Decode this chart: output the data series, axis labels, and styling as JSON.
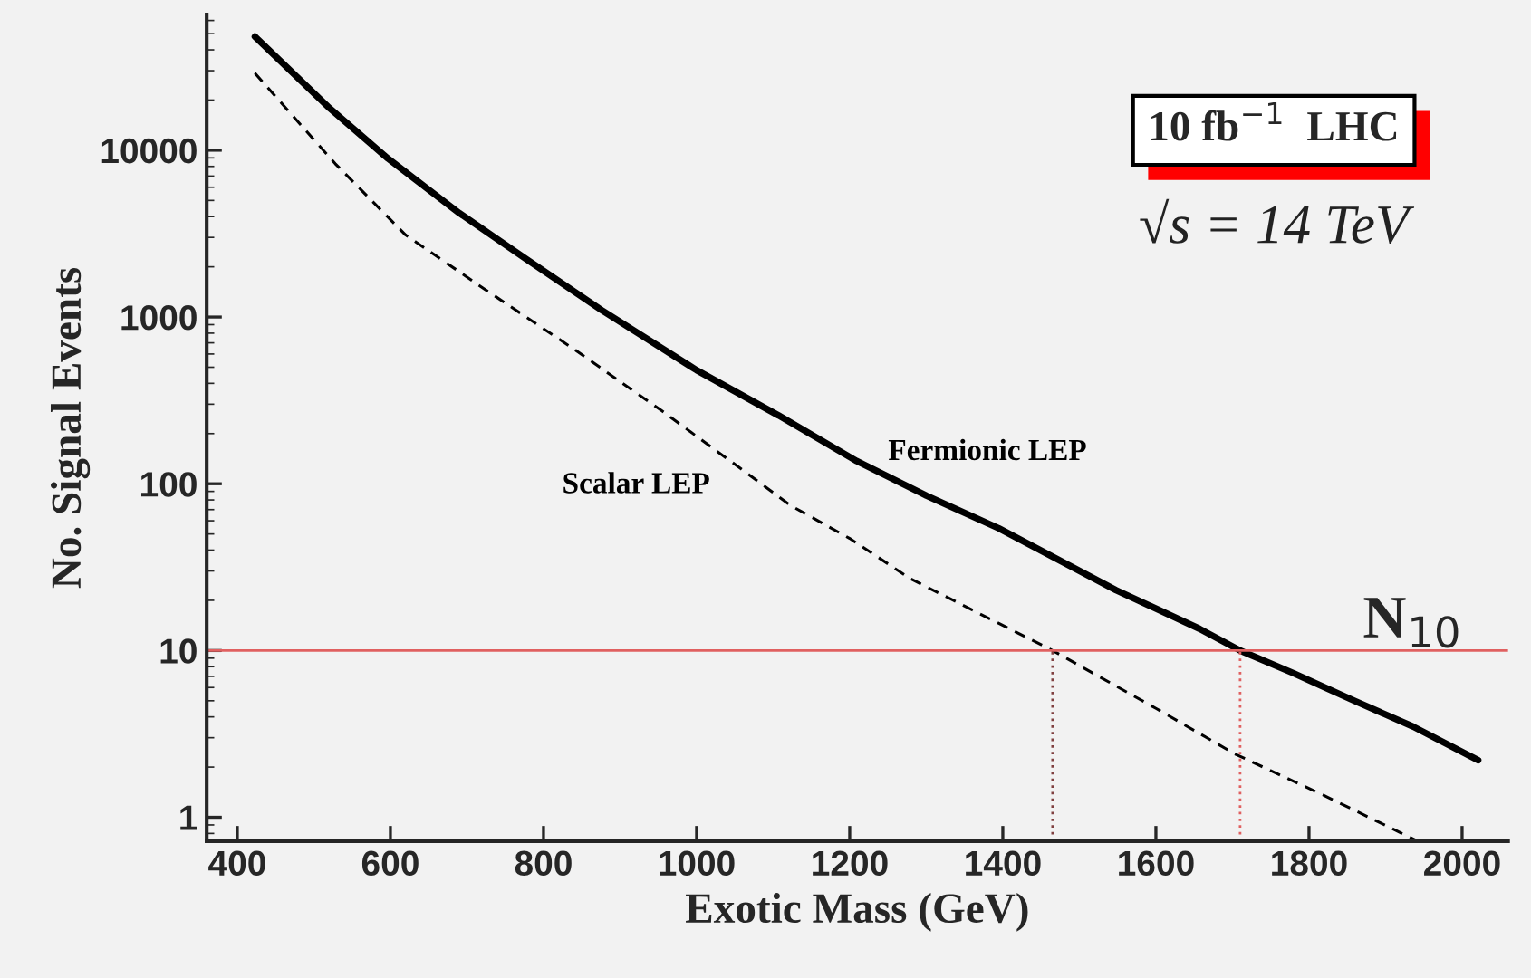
{
  "chart_data": {
    "type": "line",
    "xlabel": "Exotic Mass (GeV)",
    "ylabel": "No. Signal Events",
    "log": "y",
    "xlim": [
      360,
      2060
    ],
    "ylim": [
      0.72,
      65000
    ],
    "xticks": [
      400,
      600,
      800,
      1000,
      1200,
      1400,
      1600,
      1800,
      2000
    ],
    "yticks": [
      1,
      10,
      100,
      1000,
      10000
    ],
    "grid": false,
    "series": [
      {
        "name": "Fermionic LEP",
        "color": "#000000",
        "line_style": "solid",
        "x": [
          423,
          521,
          597,
          690,
          776,
          876,
          1000,
          1107,
          1209,
          1300,
          1395,
          1548,
          1657,
          1710,
          1780,
          1859,
          1936,
          2021
        ],
        "values": [
          48000,
          17800,
          8900,
          4200,
          2250,
          1100,
          480,
          257,
          137,
          85,
          54,
          23,
          13.5,
          10,
          7.3,
          5.0,
          3.5,
          2.2
        ]
      },
      {
        "name": "Scalar LEP",
        "color": "#000000",
        "line_style": "dashed",
        "x": [
          423,
          528,
          620,
          722,
          838,
          954,
          1070,
          1123,
          1200,
          1279,
          1465,
          1600,
          1703,
          1820,
          1942
        ],
        "values": [
          29000,
          8300,
          3100,
          1480,
          650,
          275,
          112,
          74,
          47,
          27,
          10,
          4.5,
          2.4,
          1.35,
          0.72
        ]
      }
    ],
    "ref_lines": [
      {
        "axis": "y",
        "value": 10,
        "label": "N$_{10}$",
        "color": "#e06060",
        "line_style": "solid"
      },
      {
        "axis": "x",
        "value": 1465,
        "color": "#804040",
        "line_style": "dotted"
      },
      {
        "axis": "x",
        "value": 1710,
        "color": "#e06060",
        "line_style": "dotted"
      }
    ],
    "annotations": [
      "10 fb$^{−1}$  LHC",
      "√s = 14 TeV"
    ]
  }
}
